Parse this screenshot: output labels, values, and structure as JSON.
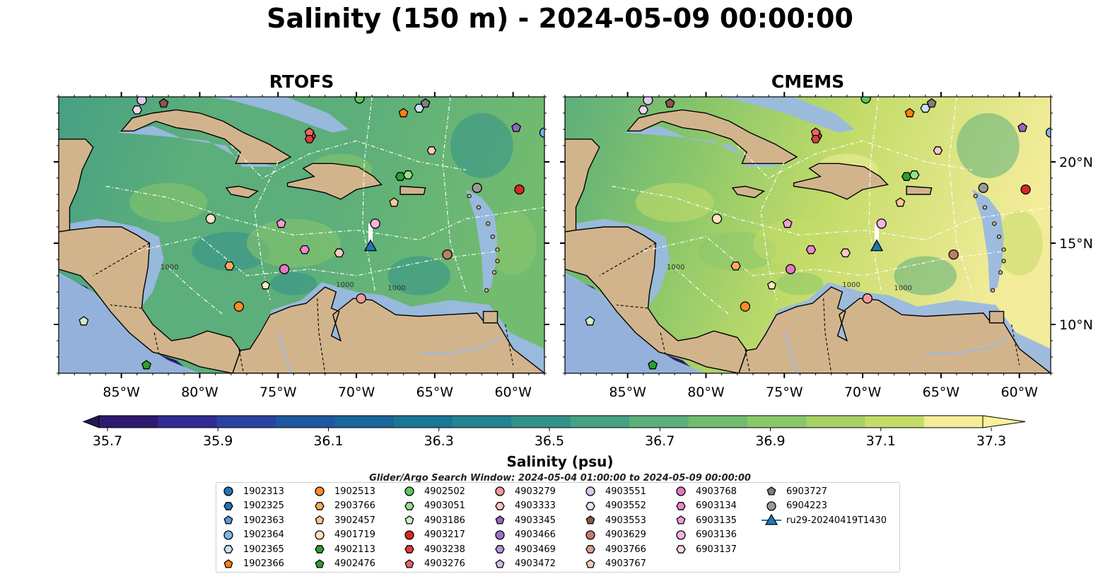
{
  "title": "Salinity (150 m) - 2024-05-09 00:00:00",
  "panels": [
    {
      "id": "rtofs",
      "title": "RTOFS",
      "palette_shift": 0.0
    },
    {
      "id": "cmems",
      "title": "CMEMS",
      "palette_shift": 0.25
    }
  ],
  "map": {
    "lon_range": [
      -89,
      -58
    ],
    "lat_range": [
      7,
      24
    ],
    "lon_ticks": [
      -85,
      -80,
      -75,
      -70,
      -65,
      -60
    ],
    "lon_tick_labels": [
      "85°W",
      "80°W",
      "75°W",
      "70°W",
      "65°W",
      "60°W"
    ],
    "lat_ticks": [
      10,
      15,
      20
    ],
    "lat_tick_labels": [
      "10°N",
      "15°N",
      "20°N"
    ],
    "land_color": "#d2b48c",
    "shelf_color": "#9ab9e2",
    "contour_labels": [
      {
        "text": "1000",
        "lon": -82.5,
        "lat": 13.4
      },
      {
        "text": "1000",
        "lon": -71.3,
        "lat": 12.3
      },
      {
        "text": "1000",
        "lon": -68.0,
        "lat": 12.1
      }
    ]
  },
  "colorbar": {
    "label": "Salinity (psu)",
    "min": 35.7,
    "max": 37.3,
    "ticks": [
      "35.7",
      "35.9",
      "36.1",
      "36.3",
      "36.5",
      "36.7",
      "36.9",
      "37.1",
      "37.3"
    ],
    "colors": [
      "#2e1a6e",
      "#322b92",
      "#2a43a0",
      "#1f58a0",
      "#1a659a",
      "#1b7593",
      "#23838f",
      "#33918a",
      "#46a083",
      "#5cae7b",
      "#72bb6f",
      "#8bc76a",
      "#a7d165",
      "#c4dc6a",
      "#f3ec9a"
    ],
    "under_color": "#261654",
    "over_color": "#fbf09b"
  },
  "search_window": "Glider/Argo Search Window: 2024-05-04 01:00:00 to 2024-05-09 00:00:00",
  "glider": {
    "id": "ru29-20240419T1430",
    "color": "#1f77b4",
    "track": [
      [
        -69.1,
        16.2
      ],
      [
        -69.1,
        14.8
      ]
    ],
    "position": [
      -69.1,
      14.8
    ]
  },
  "floats": [
    {
      "id": "1902313",
      "marker": "circle",
      "color": "#1f77b4",
      "lon": null,
      "lat": null
    },
    {
      "id": "1902325",
      "marker": "hexagon",
      "color": "#1f77b4",
      "lon": null,
      "lat": null
    },
    {
      "id": "1902363",
      "marker": "pentagon",
      "color": "#5b9bd5",
      "lon": null,
      "lat": null
    },
    {
      "id": "1902364",
      "marker": "circle",
      "color": "#7fb5e6",
      "lon": -58.0,
      "lat": 21.8
    },
    {
      "id": "1902365",
      "marker": "hexagon",
      "color": "#c6e2f7",
      "lon": -66.0,
      "lat": 23.3
    },
    {
      "id": "1902366",
      "marker": "pentagon",
      "color": "#ff7f0e",
      "lon": -67.0,
      "lat": 23.0
    },
    {
      "id": "1902513",
      "marker": "circle",
      "color": "#ff8c2a",
      "lon": -77.5,
      "lat": 11.1
    },
    {
      "id": "2903766",
      "marker": "hexagon",
      "color": "#ffa95c",
      "lon": -78.1,
      "lat": 13.6
    },
    {
      "id": "3902457",
      "marker": "pentagon",
      "color": "#ffc690",
      "lon": -67.6,
      "lat": 17.5
    },
    {
      "id": "4901719",
      "marker": "circle",
      "color": "#ffe0c2",
      "lon": -79.3,
      "lat": 16.5
    },
    {
      "id": "4902113",
      "marker": "hexagon",
      "color": "#2ca02c",
      "lon": -67.2,
      "lat": 19.1
    },
    {
      "id": "4902476",
      "marker": "pentagon",
      "color": "#2ca02c",
      "lon": -83.4,
      "lat": 7.5
    },
    {
      "id": "4902502",
      "marker": "circle",
      "color": "#5ec65e",
      "lon": -69.8,
      "lat": 23.9
    },
    {
      "id": "4903051",
      "marker": "hexagon",
      "color": "#98df8a",
      "lon": -66.7,
      "lat": 19.2
    },
    {
      "id": "4903186",
      "marker": "pentagon",
      "color": "#cdf0c4",
      "lon": -87.4,
      "lat": 10.2
    },
    {
      "id": "4903217",
      "marker": "circle",
      "color": "#d62728",
      "lon": -59.6,
      "lat": 18.3
    },
    {
      "id": "4903238",
      "marker": "hexagon",
      "color": "#e03c3c",
      "lon": -72.9,
      "lat": 21.6
    },
    {
      "id": "4903276",
      "marker": "pentagon",
      "color": "#ea6666",
      "lon": -73.0,
      "lat": 21.8
    },
    {
      "id": "4903279",
      "marker": "circle",
      "color": "#f29a9a",
      "lon": -69.7,
      "lat": 11.6
    },
    {
      "id": "4903333",
      "marker": "hexagon",
      "color": "#f9c6c6",
      "lon": -71.1,
      "lat": 14.4
    },
    {
      "id": "4903345",
      "marker": "pentagon",
      "color": "#9467bd",
      "lon": -59.8,
      "lat": 22.1
    },
    {
      "id": "4903466",
      "marker": "circle",
      "color": "#9d70cc",
      "lon": null,
      "lat": null
    },
    {
      "id": "4903469",
      "marker": "hexagon",
      "color": "#b195dd",
      "lon": null,
      "lat": null
    },
    {
      "id": "4903472",
      "marker": "pentagon",
      "color": "#d2b8f0",
      "lon": null,
      "lat": null
    },
    {
      "id": "4903551",
      "marker": "circle",
      "color": "#dcc8f2",
      "lon": -83.7,
      "lat": 23.8
    },
    {
      "id": "4903552",
      "marker": "hexagon",
      "color": "#eee0f8",
      "lon": null,
      "lat": null
    },
    {
      "id": "4903553",
      "marker": "pentagon",
      "color": "#8c564b",
      "lon": -82.3,
      "lat": 23.6
    },
    {
      "id": "4903629",
      "marker": "circle",
      "color": "#c07d6e",
      "lon": -64.2,
      "lat": 14.3
    },
    {
      "id": "4903766",
      "marker": "hexagon",
      "color": "#d9a092",
      "lon": null,
      "lat": null
    },
    {
      "id": "4903767",
      "marker": "pentagon",
      "color": "#f2cbbf",
      "lon": null,
      "lat": null
    },
    {
      "id": "4903768",
      "marker": "circle",
      "color": "#e377c2",
      "lon": -74.6,
      "lat": 13.4
    },
    {
      "id": "6903134",
      "marker": "hexagon",
      "color": "#ec86cf",
      "lon": -73.3,
      "lat": 14.6
    },
    {
      "id": "6903135",
      "marker": "pentagon",
      "color": "#f49bd9",
      "lon": -74.8,
      "lat": 16.2
    },
    {
      "id": "6903136",
      "marker": "circle",
      "color": "#f7b3e2",
      "lon": -68.8,
      "lat": 16.2
    },
    {
      "id": "6903137",
      "marker": "hexagon",
      "color": "#fbd3ee",
      "lon": -84.0,
      "lat": 23.2
    },
    {
      "id": "6903727",
      "marker": "pentagon",
      "color": "#7f7f7f",
      "lon": -65.6,
      "lat": 23.6
    },
    {
      "id": "6904223",
      "marker": "circle",
      "color": "#9a9a9a",
      "lon": -62.3,
      "lat": 18.4
    }
  ],
  "extra_markers": [
    {
      "marker": "pentagon",
      "color": "#fce9c2",
      "lon": -75.8,
      "lat": 12.4
    },
    {
      "marker": "hexagon",
      "color": "#f9c6c6",
      "lon": -65.2,
      "lat": 20.7
    },
    {
      "marker": "hexagon",
      "color": "#e03c3c",
      "lon": -73.0,
      "lat": 21.4
    }
  ]
}
